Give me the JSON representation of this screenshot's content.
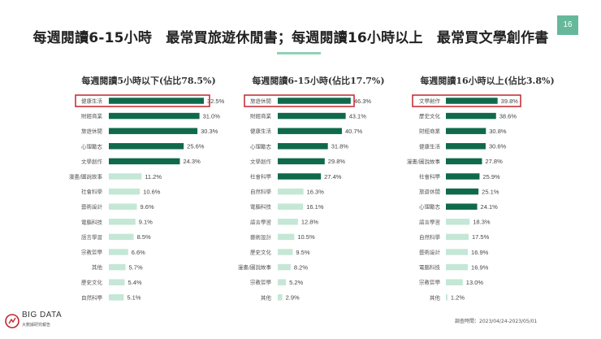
{
  "header": {
    "title": "每週閱讀6-15小時　最常買旅遊休閒書；每週閱讀16小時以上　最常買文學創作書",
    "page_number": "16"
  },
  "colors": {
    "dark_bar": "#0f6a4b",
    "light_bar": "#c4e7d6",
    "accent": "#66b89a",
    "highlight": "#c0262d"
  },
  "chart_data": [
    {
      "type": "bar",
      "orientation": "horizontal",
      "title": "每週閱讀5小時以下(佔比78.5%)",
      "categories": [
        "健康生活",
        "財經商業",
        "旅遊休閒",
        "心理勵志",
        "文學創作",
        "漫畫/圖說故事",
        "社會科學",
        "藝術設計",
        "電腦科技",
        "語言學習",
        "宗教哲學",
        "其他",
        "歷史文化",
        "自然科學"
      ],
      "values": [
        32.5,
        31.0,
        30.3,
        25.6,
        24.3,
        11.2,
        10.6,
        9.6,
        9.1,
        8.5,
        6.6,
        5.7,
        5.4,
        5.1
      ],
      "value_labels": [
        "32.5%",
        "31.0%",
        "30.3%",
        "25.6%",
        "24.3%",
        "11.2%",
        "10.6%",
        "9.6%",
        "9.1%",
        "8.5%",
        "6.6%",
        "5.7%",
        "5.4%",
        "5.1%"
      ],
      "highlighted": [
        true,
        true,
        true,
        true,
        true,
        false,
        false,
        false,
        false,
        false,
        false,
        false,
        false,
        false
      ],
      "boxed": 0
    },
    {
      "type": "bar",
      "orientation": "horizontal",
      "title": "每週閱讀6-15小時(佔比17.7%)",
      "categories": [
        "旅遊休閒",
        "財經商業",
        "健康生活",
        "心理勵志",
        "文學創作",
        "社會科學",
        "自然科學",
        "電腦科技",
        "語言學習",
        "藝術設計",
        "歷史文化",
        "漫畫/圖說故事",
        "宗教哲學",
        "其他"
      ],
      "values": [
        46.3,
        43.1,
        40.7,
        31.8,
        29.8,
        27.4,
        16.3,
        16.1,
        12.8,
        10.5,
        9.5,
        8.2,
        5.2,
        2.9
      ],
      "value_labels": [
        "46.3%",
        "43.1%",
        "40.7%",
        "31.8%",
        "29.8%",
        "27.4%",
        "16.3%",
        "16.1%",
        "12.8%",
        "10.5%",
        "9.5%",
        "8.2%",
        "5.2%",
        "2.9%"
      ],
      "highlighted": [
        true,
        true,
        true,
        true,
        true,
        true,
        false,
        false,
        false,
        false,
        false,
        false,
        false,
        false
      ],
      "boxed": 0
    },
    {
      "type": "bar",
      "orientation": "horizontal",
      "title": "每週閱讀16小時以上(佔比3.8%)",
      "categories": [
        "文學創作",
        "歷史文化",
        "財經商業",
        "健康生活",
        "漫畫/圖說故事",
        "社會科學",
        "旅遊休閒",
        "心理勵志",
        "語言學習",
        "自然科學",
        "藝術設計",
        "電腦科技",
        "宗教哲學",
        "其他"
      ],
      "values": [
        39.8,
        38.6,
        30.8,
        30.6,
        27.8,
        25.9,
        25.1,
        24.1,
        18.3,
        17.5,
        16.9,
        16.9,
        13.0,
        1.2
      ],
      "value_labels": [
        "39.8%",
        "38.6%",
        "30.8%",
        "30.6%",
        "27.8%",
        "25.9%",
        "25.1%",
        "24.1%",
        "18.3%",
        "17.5%",
        "16.9%",
        "16.9%",
        "13.0%",
        "1.2%"
      ],
      "highlighted": [
        true,
        true,
        true,
        true,
        true,
        true,
        true,
        true,
        false,
        false,
        false,
        false,
        false,
        false
      ],
      "boxed": 0
    }
  ],
  "footer": {
    "logo_text": "BIG DATA",
    "logo_subtext": "大數據研究報告",
    "survey_date": "調查時間：2023/04/24-2023/05/01"
  }
}
